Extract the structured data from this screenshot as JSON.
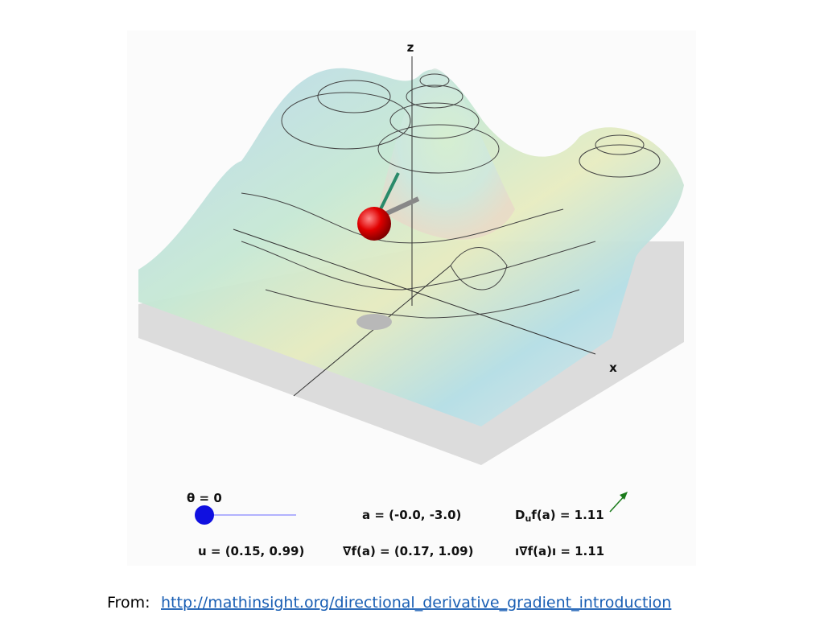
{
  "figure": {
    "axis_labels": {
      "z": "z",
      "x": "x"
    }
  },
  "controls": {
    "theta": "θ = 0",
    "a": "a = (-0.0, -3.0)",
    "directional_derivative": {
      "symbol": "D",
      "subscript": "u",
      "rest": "f(a) = 1.11"
    },
    "u": "u = (0.15, 0.99)",
    "gradient": "∇f(a) = (0.17, 1.09)",
    "gradient_norm": "ı∇f(a)ı = 1.11"
  },
  "caption": {
    "prefix": "From:",
    "link": "http://mathinsight.org/directional_derivative_gradient_introduction"
  }
}
